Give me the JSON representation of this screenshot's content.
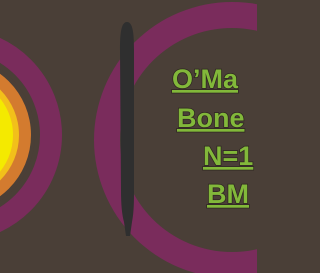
{
  "labels": [
    "O’Ma",
    "Bone",
    "N=1",
    "BM"
  ]
}
